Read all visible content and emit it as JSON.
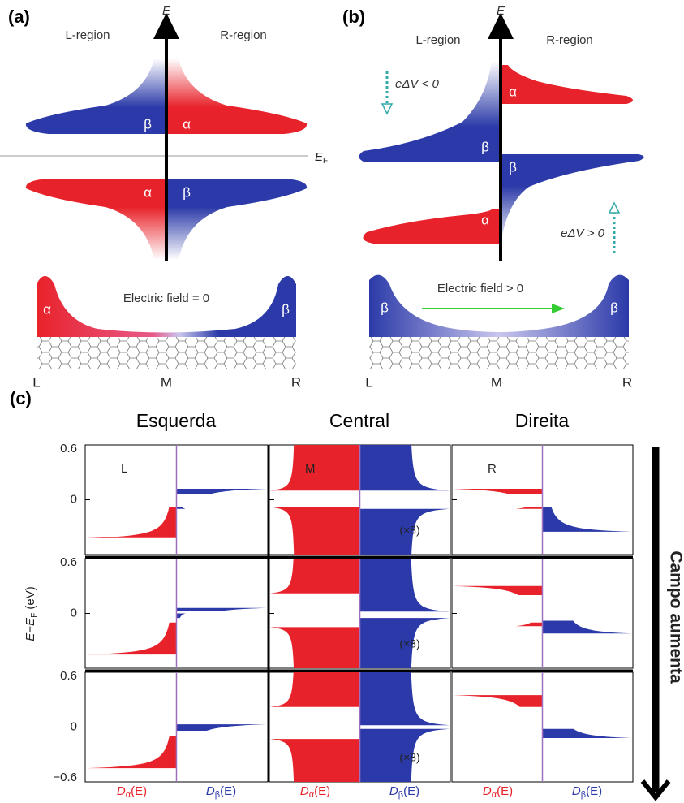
{
  "panel_a": {
    "label": "(a)",
    "axis_label": "E",
    "left_region": "L-region",
    "right_region": "R-region",
    "upper_left": "β",
    "upper_right": "α",
    "lower_left": "α",
    "lower_right": "β",
    "field": "Electric field = 0",
    "edge_left": "α",
    "edge_right": "β",
    "positions": [
      "L",
      "M",
      "R"
    ]
  },
  "fermi": {
    "symbol": "E",
    "sub": "F"
  },
  "panel_b": {
    "label": "(b)",
    "axis_label": "E",
    "left_region": "L-region",
    "right_region": "R-region",
    "upper_right": "α",
    "mid_left": "β",
    "mid_right": "β",
    "lower_left": "α",
    "bias_top": "eΔV < 0",
    "bias_bottom": "eΔV > 0",
    "field": "Electric field > 0",
    "edge_left": "β",
    "edge_right": "β",
    "positions": [
      "L",
      "M",
      "R"
    ]
  },
  "panel_c": {
    "label": "(c)",
    "columns": [
      "Esquerda",
      "Central",
      "Direita"
    ],
    "cell_labels": [
      "L",
      "M",
      "R"
    ],
    "scale_notes": [
      "(×8)",
      "(×8)",
      "(×8)"
    ],
    "y_ticks": [
      [
        "0.6",
        "0"
      ],
      [
        "0.6",
        "0"
      ],
      [
        "0.6",
        "0",
        "−0.6"
      ]
    ],
    "y_label": {
      "main": "E−E",
      "sub": "F",
      "unit": " (eV)"
    },
    "x_labels": [
      {
        "d": "D",
        "sub": "α",
        "arg": "(E)"
      },
      {
        "d": "D",
        "sub": "β",
        "arg": "(E)"
      },
      {
        "d": "D",
        "sub": "α",
        "arg": "(E)"
      },
      {
        "d": "D",
        "sub": "β",
        "arg": "(E)"
      },
      {
        "d": "D",
        "sub": "α",
        "arg": "(E)"
      },
      {
        "d": "D",
        "sub": "β",
        "arg": "(E)"
      }
    ],
    "side_label": "Campo aumenta"
  }
}
